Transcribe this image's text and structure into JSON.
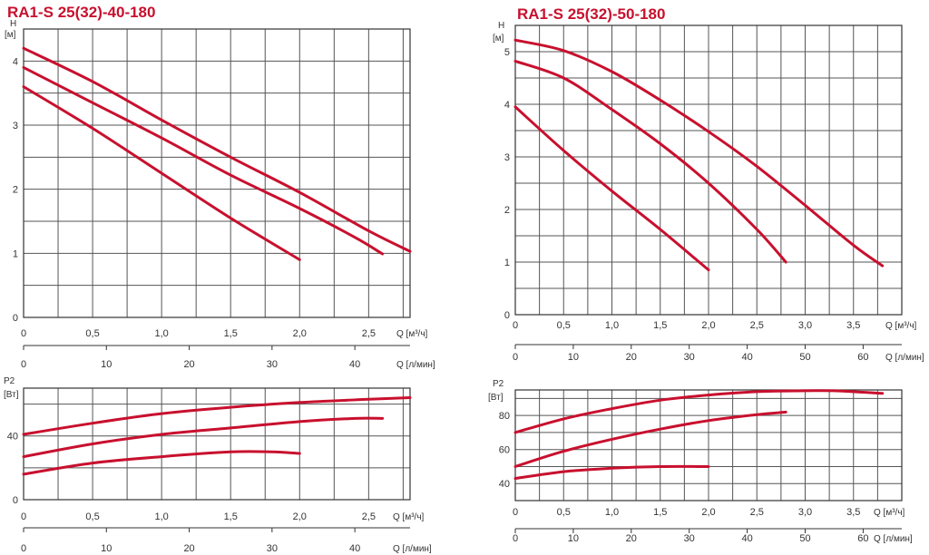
{
  "chart_data": [
    {
      "id": "h1",
      "type": "line",
      "title": "RA1-S 25(32)-40-180",
      "ylabel_top": "H",
      "ylabel_unit": "[м]",
      "xlabel": "Q [м³/ч]",
      "xlabel2": "Q [л/мин]",
      "xlim": [
        0,
        2.8
      ],
      "ylim": [
        0,
        4.5
      ],
      "x_ticks": [
        0,
        0.5,
        1.0,
        1.5,
        2.0,
        2.5
      ],
      "x_tick_labels": [
        "0",
        "0,5",
        "1,0",
        "1,5",
        "2,0",
        "2,5"
      ],
      "y_ticks": [
        0,
        1,
        2,
        3,
        4
      ],
      "y_tick_labels": [
        "0",
        "1",
        "2",
        "3",
        "4"
      ],
      "x2_ticks": [
        0,
        10,
        20,
        30,
        40
      ],
      "x2_tick_labels": [
        "0",
        "10",
        "20",
        "30",
        "40"
      ],
      "series": [
        {
          "x": [
            0,
            0.5,
            1.0,
            1.5,
            2.0,
            2.5,
            2.8
          ],
          "y": [
            4.2,
            3.68,
            3.08,
            2.5,
            1.95,
            1.35,
            1.03
          ]
        },
        {
          "x": [
            0,
            0.5,
            1.0,
            1.5,
            2.0,
            2.4,
            2.6
          ],
          "y": [
            3.9,
            3.35,
            2.8,
            2.22,
            1.7,
            1.25,
            0.99
          ]
        },
        {
          "x": [
            0,
            0.5,
            1.0,
            1.5,
            2.0
          ],
          "y": [
            3.6,
            2.95,
            2.25,
            1.55,
            0.9
          ]
        }
      ]
    },
    {
      "id": "h2",
      "type": "line",
      "title": "RA1-S 25(32)-50-180",
      "ylabel_top": "H",
      "ylabel_unit": "[м]",
      "xlabel": "Q [м³/ч]",
      "xlabel2": "Q [л/мин]",
      "xlim": [
        0,
        4.0
      ],
      "ylim": [
        0,
        5.5
      ],
      "x_ticks": [
        0,
        0.5,
        1.0,
        1.5,
        2.0,
        2.5,
        3.0,
        3.5
      ],
      "x_tick_labels": [
        "0",
        "0,5",
        "1,0",
        "1,5",
        "2,0",
        "2,5",
        "3,0",
        "3,5"
      ],
      "y_ticks": [
        0,
        1,
        2,
        3,
        4,
        5
      ],
      "y_tick_labels": [
        "0",
        "1",
        "2",
        "3",
        "4",
        "5"
      ],
      "x2_ticks": [
        0,
        10,
        20,
        30,
        40,
        50,
        60
      ],
      "x2_tick_labels": [
        "0",
        "10",
        "20",
        "30",
        "40",
        "50",
        "60"
      ],
      "series": [
        {
          "x": [
            0,
            0.5,
            1.0,
            1.5,
            2.0,
            2.5,
            3.0,
            3.5,
            3.8
          ],
          "y": [
            5.22,
            5.02,
            4.62,
            4.08,
            3.48,
            2.82,
            2.08,
            1.32,
            0.93
          ]
        },
        {
          "x": [
            0,
            0.5,
            1.0,
            1.5,
            2.0,
            2.5,
            2.8
          ],
          "y": [
            4.82,
            4.5,
            3.9,
            3.25,
            2.5,
            1.62,
            1.0
          ]
        },
        {
          "x": [
            0,
            0.5,
            1.0,
            1.5,
            2.0
          ],
          "y": [
            3.95,
            3.12,
            2.35,
            1.62,
            0.85
          ]
        }
      ]
    },
    {
      "id": "p1",
      "type": "line",
      "ylabel_top": "P2",
      "ylabel_unit": "[Вт]",
      "xlabel": "Q [м³/ч]",
      "xlabel2": "Q [л/мин]",
      "xlim": [
        0,
        2.8
      ],
      "ylim": [
        0,
        70
      ],
      "x_ticks": [
        0,
        0.5,
        1.0,
        1.5,
        2.0,
        2.5
      ],
      "x_tick_labels": [
        "0",
        "0,5",
        "1,0",
        "1,5",
        "2,0",
        "2,5"
      ],
      "y_ticks": [
        0,
        40
      ],
      "y_tick_labels": [
        "0",
        "40"
      ],
      "y_grid": [
        0,
        20,
        40,
        60
      ],
      "x2_ticks": [
        0,
        10,
        20,
        30,
        40
      ],
      "x2_tick_labels": [
        "0",
        "10",
        "20",
        "30",
        "40"
      ],
      "series": [
        {
          "x": [
            0,
            0.5,
            1.0,
            1.5,
            2.0,
            2.5,
            2.8
          ],
          "y": [
            41,
            48,
            54,
            58,
            61,
            63,
            64
          ]
        },
        {
          "x": [
            0,
            0.5,
            1.0,
            1.5,
            2.0,
            2.4,
            2.6
          ],
          "y": [
            27,
            35,
            41,
            45,
            49,
            51,
            51
          ]
        },
        {
          "x": [
            0,
            0.5,
            1.0,
            1.5,
            1.8,
            2.0
          ],
          "y": [
            16,
            23,
            27,
            30,
            30,
            29
          ]
        }
      ]
    },
    {
      "id": "p2",
      "type": "line",
      "ylabel_top": "P2",
      "ylabel_unit": "[Вт]",
      "xlabel": "Q [м³/ч]",
      "xlabel2": "Q [л/мин]",
      "xlim": [
        0,
        4.0
      ],
      "ylim": [
        30,
        95
      ],
      "x_ticks": [
        0,
        0.5,
        1.0,
        1.5,
        2.0,
        2.5,
        3.0,
        3.5
      ],
      "x_tick_labels": [
        "0",
        "0,5",
        "1,0",
        "1,5",
        "2,0",
        "2,5",
        "3,0",
        "3,5"
      ],
      "y_ticks": [
        40,
        60,
        80
      ],
      "y_tick_labels": [
        "40",
        "60",
        "80"
      ],
      "y_grid": [
        40,
        50,
        60,
        70,
        80,
        90
      ],
      "x2_ticks": [
        0,
        10,
        20,
        30,
        40,
        50,
        60
      ],
      "x2_tick_labels": [
        "0",
        "10",
        "20",
        "30",
        "40",
        "50",
        "60"
      ],
      "series": [
        {
          "x": [
            0,
            0.5,
            1.0,
            1.5,
            2.0,
            2.5,
            3.0,
            3.3,
            3.8
          ],
          "y": [
            70,
            78,
            84,
            89,
            92,
            94,
            94.5,
            94.5,
            93
          ]
        },
        {
          "x": [
            0,
            0.5,
            1.0,
            1.5,
            2.0,
            2.5,
            2.8
          ],
          "y": [
            50,
            59,
            66,
            72,
            77,
            80.5,
            82
          ]
        },
        {
          "x": [
            0,
            0.5,
            1.0,
            1.5,
            2.0
          ],
          "y": [
            43,
            47,
            49,
            50,
            50
          ]
        }
      ]
    }
  ]
}
